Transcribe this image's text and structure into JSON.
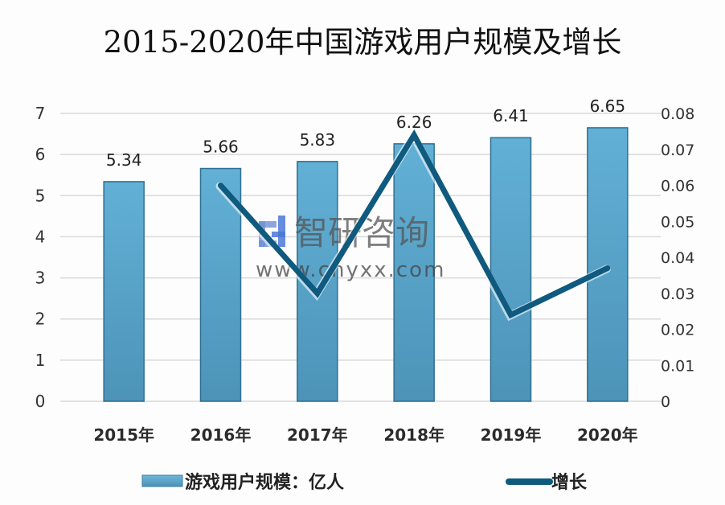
{
  "chart_data": {
    "type": "bar+line",
    "title": "2015-2020年中国游戏用户规模及增长",
    "categories": [
      "2015年",
      "2016年",
      "2017年",
      "2018年",
      "2019年",
      "2020年"
    ],
    "series": [
      {
        "name": "游戏用户规模：亿人",
        "type": "bar",
        "axis": "left",
        "color": "#5aa7cc",
        "values": [
          5.34,
          5.66,
          5.83,
          6.26,
          6.41,
          6.65
        ],
        "labels": [
          "5.34",
          "5.66",
          "5.83",
          "6.26",
          "6.41",
          "6.65"
        ]
      },
      {
        "name": "增长",
        "type": "line",
        "axis": "right",
        "color": "#0f5a7e",
        "values": [
          null,
          0.06,
          0.03,
          0.074,
          0.024,
          0.037
        ]
      }
    ],
    "left_axis": {
      "ylim": [
        0,
        7
      ],
      "ticks": [
        "0",
        "1",
        "2",
        "3",
        "4",
        "5",
        "6",
        "7"
      ]
    },
    "right_axis": {
      "ylim": [
        0,
        0.08
      ],
      "ticks": [
        "0",
        "0.01",
        "0.02",
        "0.03",
        "0.04",
        "0.05",
        "0.06",
        "0.07",
        "0.08"
      ]
    },
    "grid": true,
    "legend_position": "bottom"
  },
  "legend": {
    "bar_label": "游戏用户规模：亿人",
    "line_label": "增长"
  },
  "watermark": {
    "brand": "智研咨询",
    "url": "www.chyxx.com"
  }
}
